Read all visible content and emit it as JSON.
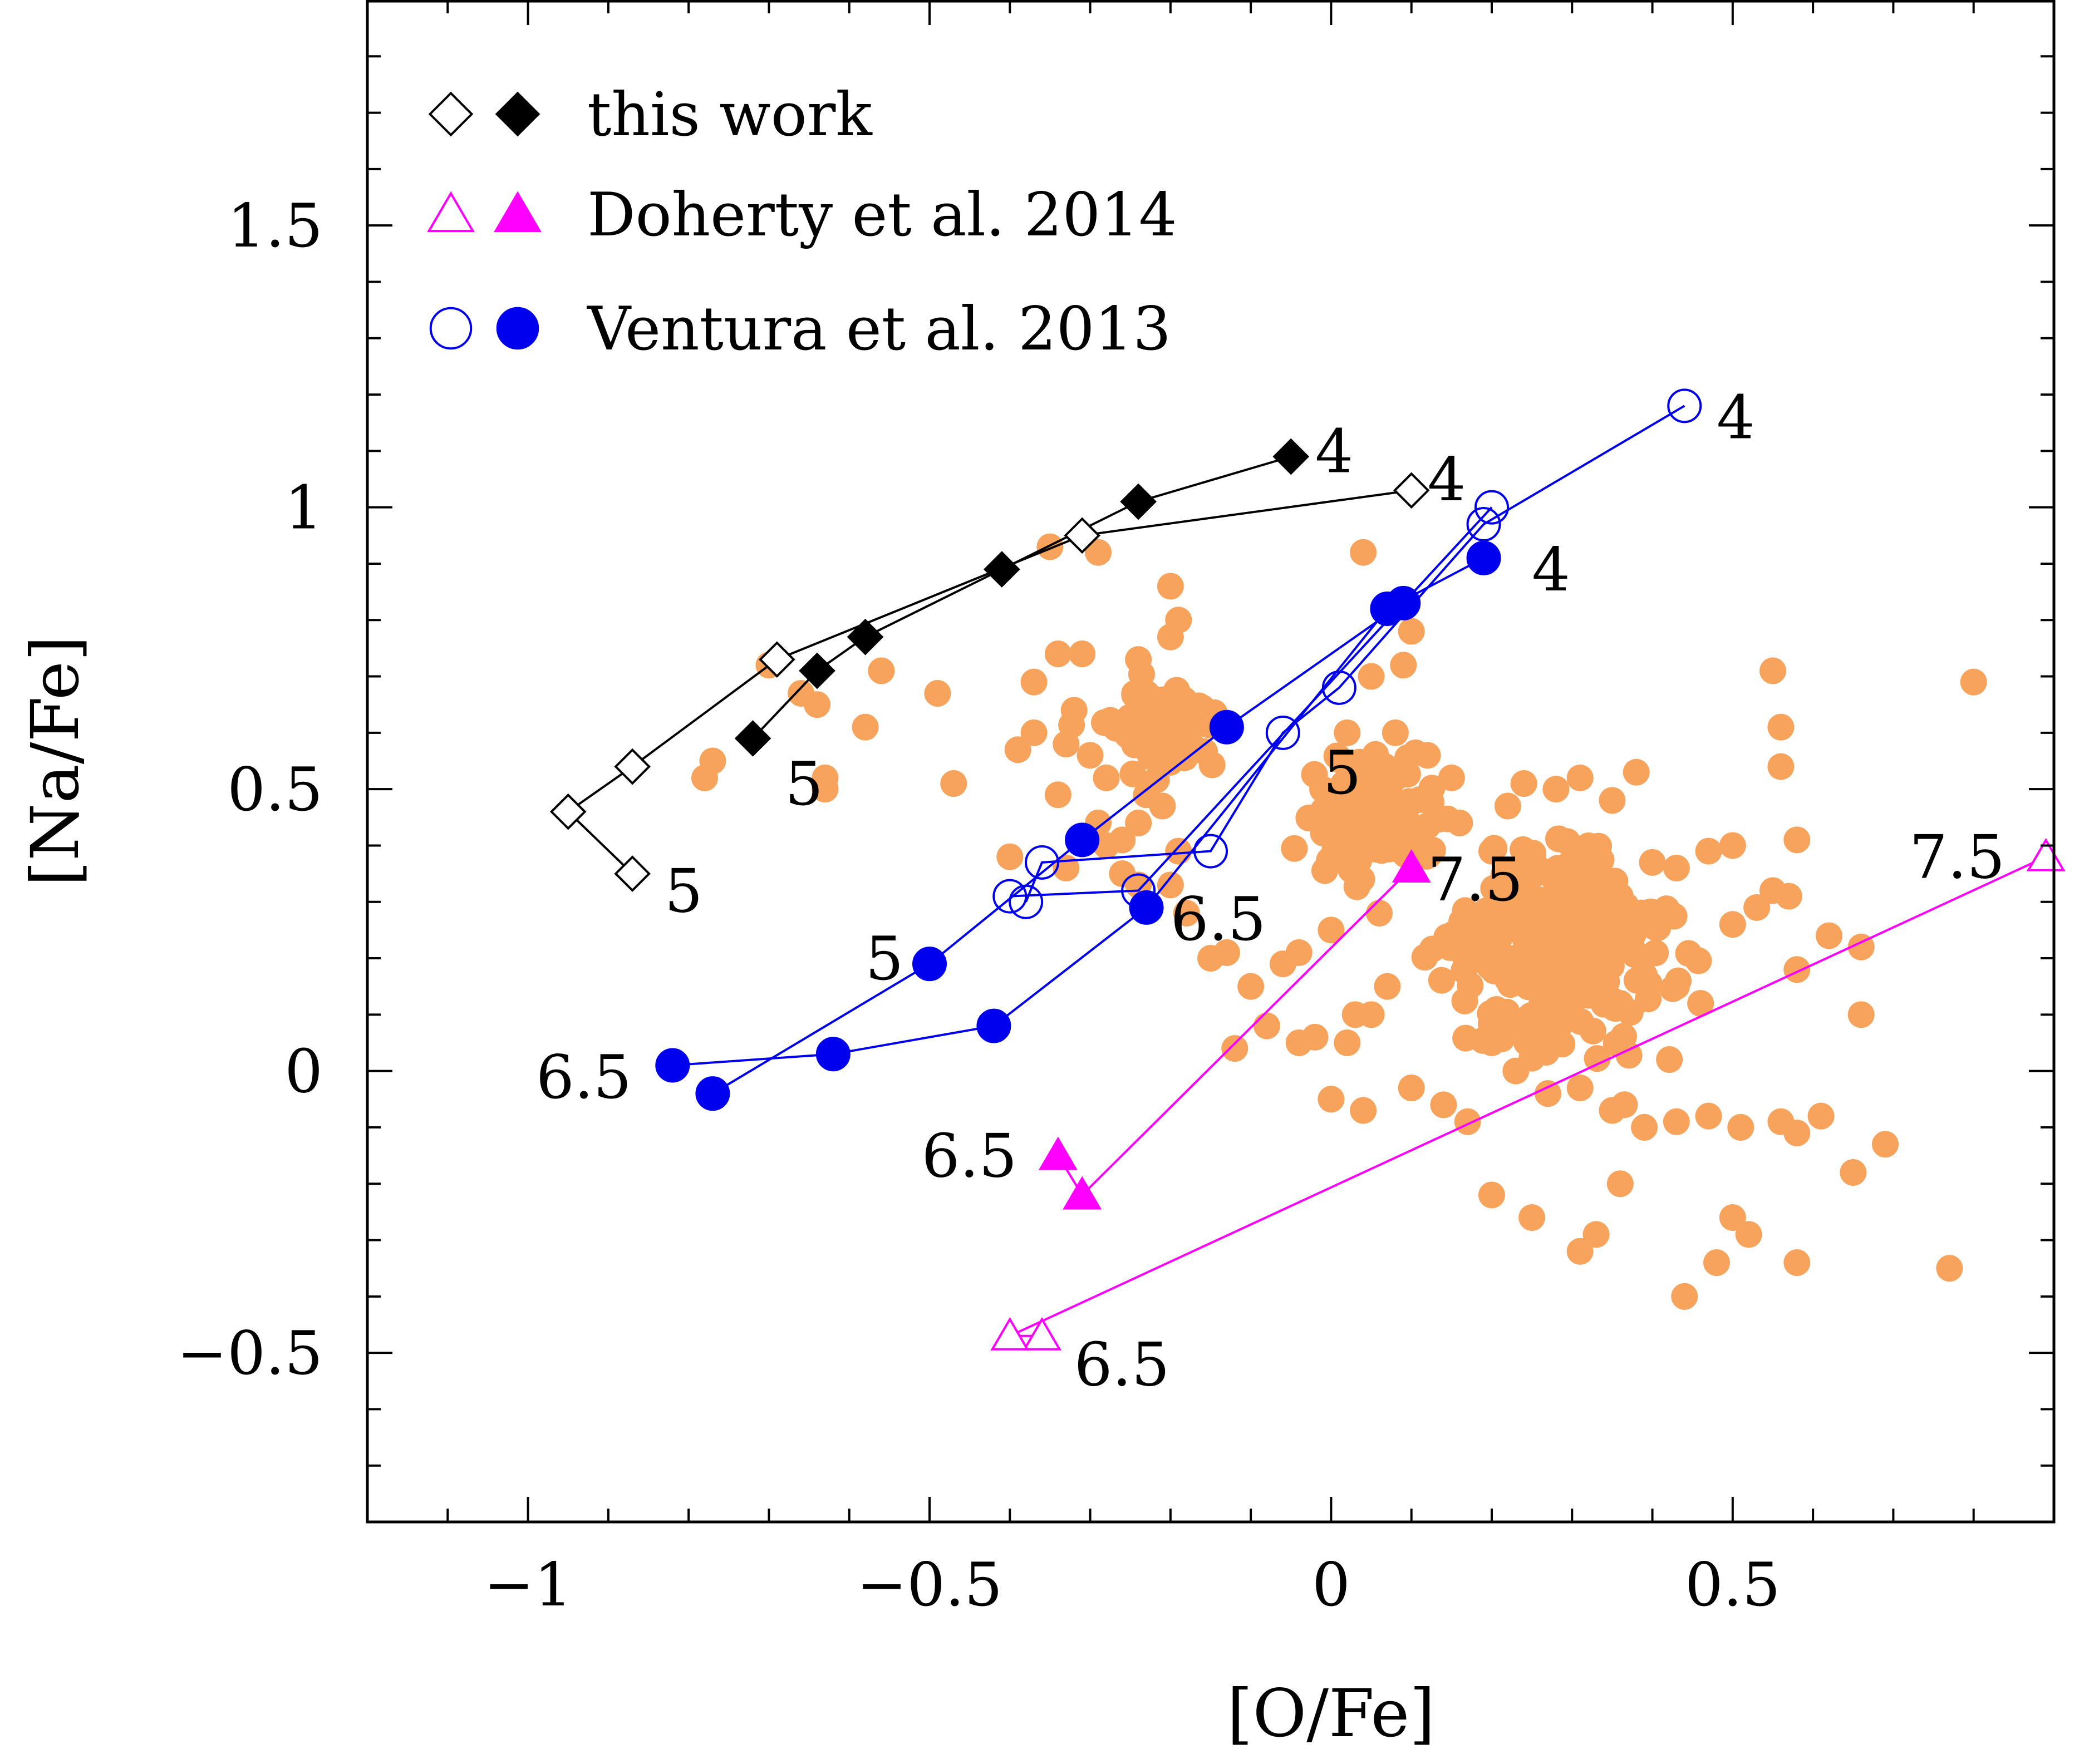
{
  "chart_data": {
    "type": "scatter",
    "title": "",
    "xlabel": "[O/Fe]",
    "ylabel": "[Na/Fe]",
    "xlim": [
      -1.2,
      0.9
    ],
    "ylim": [
      -0.8,
      1.9
    ],
    "xticks": [
      -1,
      -0.5,
      0,
      0.5
    ],
    "xtick_labels": [
      "−1",
      "−0.5",
      "0",
      "0.5"
    ],
    "yticks": [
      -0.5,
      0,
      0.5,
      1,
      1.5
    ],
    "ytick_labels": [
      "−0.5",
      "0",
      "0.5",
      "1",
      "1.5"
    ],
    "xminor": [
      -1.1,
      -1.0,
      -0.9,
      -0.8,
      -0.7,
      -0.6,
      -0.5,
      -0.4,
      -0.3,
      -0.2,
      -0.1,
      0,
      0.1,
      0.2,
      0.3,
      0.4,
      0.5,
      0.6,
      0.7,
      0.8
    ],
    "yminor": [
      -0.7,
      -0.6,
      -0.5,
      -0.4,
      -0.3,
      -0.2,
      -0.1,
      0,
      0.1,
      0.2,
      0.3,
      0.4,
      0.5,
      0.6,
      0.7,
      0.8,
      0.9,
      1.0,
      1.1,
      1.2,
      1.3,
      1.4,
      1.5,
      1.6,
      1.7,
      1.8
    ],
    "legend_position": "top-left",
    "legend": [
      {
        "label": "this work",
        "markers": [
          "open-diamond",
          "filled-diamond"
        ],
        "color": "#000000"
      },
      {
        "label": "Doherty et al. 2014",
        "markers": [
          "open-triangle",
          "filled-triangle"
        ],
        "color": "#ff00ff"
      },
      {
        "label": "Ventura et al. 2013",
        "markers": [
          "open-circle",
          "filled-circle"
        ],
        "color": "#0000ee"
      }
    ],
    "observations": {
      "name": "observed stars",
      "color": "#f7a35c",
      "seed": 7,
      "count": 520,
      "points": [
        [
          -0.78,
          0.52
        ],
        [
          -0.77,
          0.55
        ],
        [
          -0.7,
          0.72
        ],
        [
          -0.66,
          0.67
        ],
        [
          -0.64,
          0.65
        ],
        [
          -0.63,
          0.52
        ],
        [
          -0.63,
          0.5
        ],
        [
          -0.58,
          0.61
        ],
        [
          -0.56,
          0.71
        ],
        [
          -0.49,
          0.67
        ],
        [
          -0.47,
          0.51
        ],
        [
          -0.35,
          0.93
        ],
        [
          -0.29,
          0.92
        ],
        [
          -0.2,
          0.86
        ],
        [
          -0.19,
          0.8
        ],
        [
          -0.2,
          0.77
        ],
        [
          -0.34,
          0.74
        ],
        [
          -0.31,
          0.74
        ],
        [
          -0.24,
          0.73
        ],
        [
          -0.23,
          0.67
        ],
        [
          -0.37,
          0.69
        ],
        [
          -0.32,
          0.64
        ],
        [
          -0.37,
          0.6
        ],
        [
          -0.39,
          0.57
        ],
        [
          -0.33,
          0.58
        ],
        [
          -0.3,
          0.56
        ],
        [
          -0.28,
          0.52
        ],
        [
          -0.34,
          0.49
        ],
        [
          -0.29,
          0.44
        ],
        [
          -0.26,
          0.41
        ],
        [
          -0.23,
          0.49
        ],
        [
          -0.24,
          0.44
        ],
        [
          -0.21,
          0.47
        ],
        [
          -0.19,
          0.39
        ],
        [
          -0.4,
          0.38
        ],
        [
          -0.33,
          0.36
        ],
        [
          -0.28,
          0.4
        ],
        [
          -0.26,
          0.35
        ],
        [
          -0.24,
          0.33
        ],
        [
          -0.2,
          0.33
        ],
        [
          -0.18,
          0.28
        ],
        [
          -0.15,
          0.2
        ],
        [
          -0.13,
          0.21
        ],
        [
          -0.06,
          0.19
        ],
        [
          -0.04,
          0.21
        ],
        [
          0.0,
          0.25
        ],
        [
          0.06,
          0.28
        ],
        [
          0.07,
          0.15
        ],
        [
          0.03,
          0.1
        ],
        [
          0.05,
          0.1
        ],
        [
          0.02,
          0.05
        ],
        [
          -0.02,
          0.06
        ],
        [
          -0.04,
          0.05
        ],
        [
          -0.1,
          0.15
        ],
        [
          -0.08,
          0.08
        ],
        [
          -0.12,
          0.04
        ],
        [
          0.0,
          -0.05
        ],
        [
          0.04,
          -0.07
        ],
        [
          0.1,
          -0.03
        ],
        [
          0.14,
          -0.06
        ],
        [
          0.17,
          -0.09
        ],
        [
          0.04,
          0.92
        ],
        [
          0.1,
          0.78
        ],
        [
          0.09,
          0.72
        ],
        [
          0.05,
          0.7
        ],
        [
          0.02,
          0.6
        ],
        [
          0.08,
          0.6
        ],
        [
          0.12,
          0.56
        ],
        [
          0.15,
          0.52
        ],
        [
          0.12,
          0.48
        ],
        [
          0.16,
          0.44
        ],
        [
          0.22,
          0.47
        ],
        [
          0.24,
          0.51
        ],
        [
          0.28,
          0.5
        ],
        [
          0.31,
          0.52
        ],
        [
          0.35,
          0.48
        ],
        [
          0.38,
          0.53
        ],
        [
          0.2,
          0.39
        ],
        [
          0.24,
          0.36
        ],
        [
          0.28,
          0.34
        ],
        [
          0.32,
          0.33
        ],
        [
          0.36,
          0.31
        ],
        [
          0.4,
          0.37
        ],
        [
          0.43,
          0.36
        ],
        [
          0.47,
          0.39
        ],
        [
          0.5,
          0.4
        ],
        [
          0.55,
          0.32
        ],
        [
          0.57,
          0.31
        ],
        [
          0.2,
          0.25
        ],
        [
          0.24,
          0.21
        ],
        [
          0.28,
          0.17
        ],
        [
          0.31,
          0.15
        ],
        [
          0.36,
          0.12
        ],
        [
          0.39,
          0.17
        ],
        [
          0.43,
          0.15
        ],
        [
          0.46,
          0.12
        ],
        [
          0.5,
          0.26
        ],
        [
          0.53,
          0.29
        ],
        [
          0.62,
          0.24
        ],
        [
          0.66,
          0.22
        ],
        [
          0.58,
          0.18
        ],
        [
          0.2,
          0.05
        ],
        [
          0.23,
          0.0
        ],
        [
          0.27,
          -0.04
        ],
        [
          0.31,
          -0.03
        ],
        [
          0.35,
          -0.07
        ],
        [
          0.39,
          -0.1
        ],
        [
          0.43,
          -0.09
        ],
        [
          0.47,
          -0.08
        ],
        [
          0.51,
          -0.1
        ],
        [
          0.56,
          -0.09
        ],
        [
          0.58,
          -0.11
        ],
        [
          0.61,
          -0.08
        ],
        [
          0.65,
          -0.18
        ],
        [
          0.69,
          -0.13
        ],
        [
          0.66,
          0.1
        ],
        [
          0.55,
          0.71
        ],
        [
          0.56,
          0.61
        ],
        [
          0.56,
          0.54
        ],
        [
          0.58,
          0.41
        ],
        [
          0.8,
          0.69
        ],
        [
          0.77,
          -0.35
        ],
        [
          0.58,
          -0.34
        ],
        [
          0.44,
          -0.4
        ],
        [
          0.48,
          -0.34
        ],
        [
          0.5,
          -0.26
        ],
        [
          0.52,
          -0.29
        ],
        [
          0.31,
          -0.32
        ],
        [
          0.33,
          -0.29
        ],
        [
          0.25,
          -0.26
        ],
        [
          0.2,
          -0.22
        ],
        [
          0.36,
          -0.2
        ]
      ]
    },
    "series": [
      {
        "name": "this work (open)",
        "marker": "open-diamond",
        "color": "#000000",
        "x": [
          -0.87,
          -0.95,
          -0.87,
          -0.69,
          -0.31,
          0.1
        ],
        "y": [
          0.35,
          0.46,
          0.54,
          0.73,
          0.95,
          1.03
        ]
      },
      {
        "name": "this work (filled)",
        "marker": "filled-diamond",
        "color": "#000000",
        "x": [
          -0.72,
          -0.64,
          -0.58,
          -0.41,
          -0.24,
          -0.05
        ],
        "y": [
          0.59,
          0.71,
          0.77,
          0.89,
          1.01,
          1.09
        ]
      },
      {
        "name": "Doherty et al. 2014 (open)",
        "marker": "open-triangle",
        "color": "#ff00ff",
        "x": [
          -0.36,
          -0.4,
          0.89
        ],
        "y": [
          -0.47,
          -0.47,
          0.38
        ]
      },
      {
        "name": "Doherty et al. 2014 (filled)",
        "marker": "filled-triangle",
        "color": "#ff00ff",
        "x": [
          -0.34,
          -0.31,
          0.1
        ],
        "y": [
          -0.15,
          -0.22,
          0.36
        ]
      },
      {
        "name": "Ventura et al. 2013 (open, A)",
        "marker": "open-circle",
        "color": "#0000ee",
        "x": [
          -0.38,
          -0.36,
          -0.15,
          -0.06,
          0.01,
          0.19,
          0.44
        ],
        "y": [
          0.3,
          0.37,
          0.39,
          0.6,
          0.68,
          0.97,
          1.18
        ]
      },
      {
        "name": "Ventura et al. 2013 (open, B)",
        "marker": "open-circle",
        "color": "#0000ee",
        "x": [
          -0.4,
          -0.24,
          0.2
        ],
        "y": [
          0.31,
          0.32,
          1.0
        ]
      },
      {
        "name": "Ventura et al. 2013 (filled, A)",
        "marker": "filled-circle",
        "color": "#0000ee",
        "x": [
          -0.82,
          -0.62,
          -0.42,
          -0.23,
          0.07,
          0.19
        ],
        "y": [
          0.01,
          0.03,
          0.08,
          0.29,
          0.82,
          0.91
        ]
      },
      {
        "name": "Ventura et al. 2013 (filled, B)",
        "marker": "filled-circle",
        "color": "#0000ee",
        "x": [
          -0.77,
          -0.5,
          -0.31,
          -0.13,
          0.09
        ],
        "y": [
          -0.04,
          0.19,
          0.41,
          0.61,
          0.83
        ]
      }
    ],
    "annotations": [
      {
        "text": "4",
        "x": -0.02,
        "y": 1.1,
        "color": "#000000"
      },
      {
        "text": "4",
        "x": 0.12,
        "y": 1.05,
        "color": "#000000"
      },
      {
        "text": "5",
        "x": -0.68,
        "y": 0.51,
        "color": "#000000"
      },
      {
        "text": "5",
        "x": -0.83,
        "y": 0.32,
        "color": "#000000"
      },
      {
        "text": "4",
        "x": 0.48,
        "y": 1.16,
        "color": "#000000"
      },
      {
        "text": "4",
        "x": 0.25,
        "y": 0.89,
        "color": "#000000"
      },
      {
        "text": "5",
        "x": -0.01,
        "y": 0.53,
        "color": "#000000"
      },
      {
        "text": "5",
        "x": -0.58,
        "y": 0.2,
        "color": "#000000"
      },
      {
        "text": "6.5",
        "x": -0.2,
        "y": 0.27,
        "color": "#000000"
      },
      {
        "text": "6.5",
        "x": -0.99,
        "y": -0.01,
        "color": "#000000"
      },
      {
        "text": "7.5",
        "x": 0.12,
        "y": 0.34,
        "color": "#000000"
      },
      {
        "text": "6.5",
        "x": -0.51,
        "y": -0.15,
        "color": "#000000"
      },
      {
        "text": "6.5",
        "x": -0.32,
        "y": -0.52,
        "color": "#000000"
      },
      {
        "text": "7.5",
        "x": 0.72,
        "y": 0.38,
        "color": "#000000"
      }
    ]
  }
}
